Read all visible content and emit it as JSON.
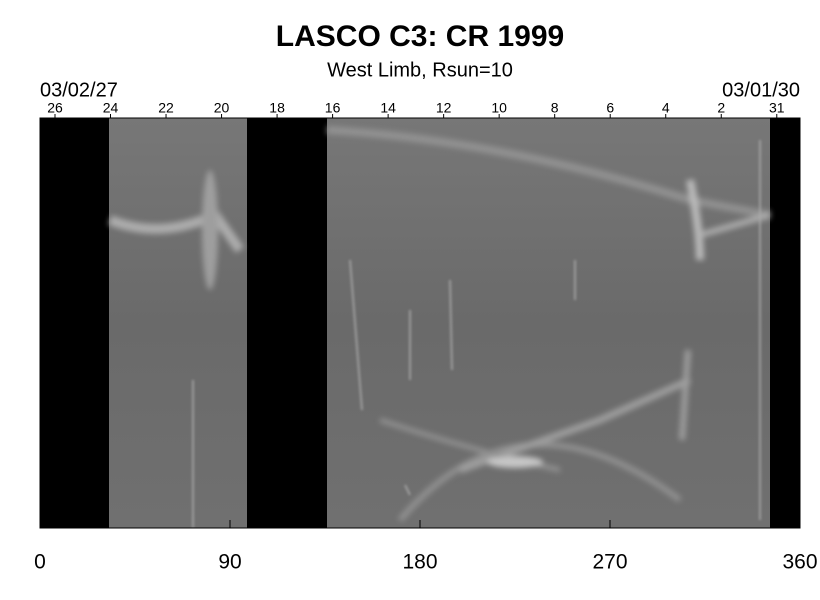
{
  "chart_data": {
    "type": "image",
    "title": "LASCO C3: CR 1999",
    "subtitle": "West Limb, Rsun=10",
    "start_date": "03/02/27",
    "end_date": "03/01/30",
    "xlim": [
      0,
      360
    ],
    "xticks": [
      0,
      90,
      180,
      270,
      360
    ],
    "x2ticks": [
      {
        "value": 7.1,
        "label": "26"
      },
      {
        "value": 33.4,
        "label": "24"
      },
      {
        "value": 59.7,
        "label": "22"
      },
      {
        "value": 86.0,
        "label": "20"
      },
      {
        "value": 112.3,
        "label": "18"
      },
      {
        "value": 138.6,
        "label": "16"
      },
      {
        "value": 164.9,
        "label": "14"
      },
      {
        "value": 191.2,
        "label": "12"
      },
      {
        "value": 217.5,
        "label": "10"
      },
      {
        "value": 243.8,
        "label": "8"
      },
      {
        "value": 270.1,
        "label": "6"
      },
      {
        "value": 296.4,
        "label": "4"
      },
      {
        "value": 322.7,
        "label": "2"
      },
      {
        "value": 349.0,
        "label": "31"
      }
    ]
  }
}
